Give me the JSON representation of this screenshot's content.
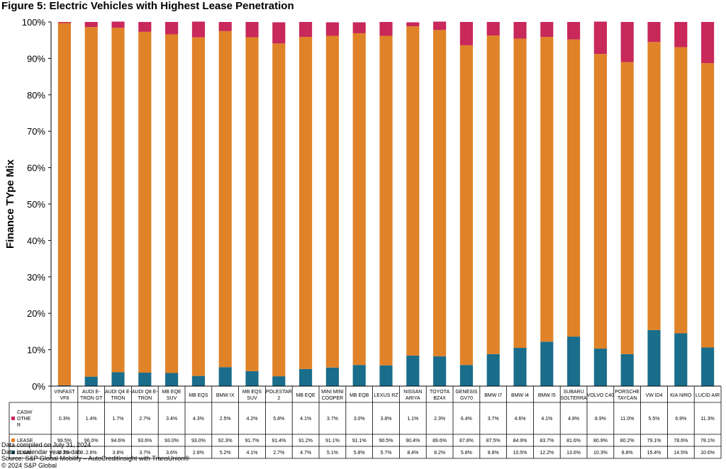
{
  "title": "Figure 5: Electric Vehicles with Highest Lease Penetration",
  "notes": [
    "Data compiled on July 31, 2024",
    "Data is calendar year to-date.",
    "Source: S&P Global Mobility – AutoCreditInsight with TransUnion®",
    "© 2024 S&P Global"
  ],
  "chart_data": {
    "type": "bar",
    "stacked": true,
    "ylabel": "Finance TYpe Mix",
    "ylim": [
      0,
      100
    ],
    "yticks": [
      "0%",
      "10%",
      "20%",
      "30%",
      "40%",
      "50%",
      "60%",
      "70%",
      "80%",
      "90%",
      "100%"
    ],
    "grid": false,
    "legend": "data table below chart",
    "categories": [
      [
        "VINFAST",
        "VF8"
      ],
      [
        "AUDI E-",
        "TRON GT"
      ],
      [
        "AUDI Q4 E-",
        "TRON"
      ],
      [
        "AUDI Q8 E-",
        "TRON"
      ],
      [
        "MB EQE",
        "SUV"
      ],
      [
        "MB EQS"
      ],
      [
        "BMW IX"
      ],
      [
        "MB EQS",
        "SUV"
      ],
      [
        "POLESTAR",
        "2"
      ],
      [
        "MB EQE"
      ],
      [
        "MINI MINI",
        "COOPER"
      ],
      [
        "MB EQB"
      ],
      [
        "LEXUS RZ"
      ],
      [
        "NISSAN",
        "ARIYA"
      ],
      [
        "TOYOTA",
        "BZ4X"
      ],
      [
        "GENESIS",
        "GV70"
      ],
      [
        "BMW I7"
      ],
      [
        "BMW I4"
      ],
      [
        "BMW I5"
      ],
      [
        "SUBARU",
        "SOLTERRA"
      ],
      [
        "VOLVO C40"
      ],
      [
        "PORSCHE",
        "TAYCAN"
      ],
      [
        "VW ID4"
      ],
      [
        "KIA NIRO"
      ],
      [
        "LUCID AIR"
      ]
    ],
    "series": [
      {
        "name": "LOAN",
        "label_lines": [
          "LOAN"
        ],
        "color": "#1a6d8b",
        "values": [
          0.2,
          2.6,
          3.8,
          3.7,
          3.6,
          2.8,
          5.2,
          4.1,
          2.7,
          4.7,
          5.1,
          5.8,
          5.7,
          8.4,
          8.2,
          5.8,
          8.8,
          10.5,
          12.2,
          13.6,
          10.3,
          8.8,
          15.4,
          14.5,
          10.6
        ],
        "labels": [
          "0.2%",
          "2.6%",
          "3.8%",
          "3.7%",
          "3.6%",
          "2.8%",
          "5.2%",
          "4.1%",
          "2.7%",
          "4.7%",
          "5.1%",
          "5.8%",
          "5.7%",
          "8.4%",
          "8.2%",
          "5.8%",
          "8.8%",
          "10.5%",
          "12.2%",
          "13.6%",
          "10.3%",
          "8.8%",
          "15.4%",
          "14.5%",
          "10.6%"
        ]
      },
      {
        "name": "LEASE",
        "label_lines": [
          "LEASE"
        ],
        "color": "#e08228",
        "values": [
          99.5,
          96.0,
          94.6,
          93.6,
          93.0,
          93.0,
          92.3,
          91.7,
          91.4,
          91.2,
          91.1,
          91.1,
          90.5,
          90.4,
          89.6,
          87.8,
          87.5,
          84.9,
          83.7,
          81.6,
          80.9,
          80.2,
          79.1,
          78.6,
          78.1
        ],
        "labels": [
          "99.5%",
          "96.0%",
          "94.6%",
          "93.6%",
          "93.0%",
          "93.0%",
          "92.3%",
          "91.7%",
          "91.4%",
          "91.2%",
          "91.1%",
          "91.1%",
          "90.5%",
          "90.4%",
          "89.6%",
          "87.8%",
          "87.5%",
          "84.9%",
          "83.7%",
          "81.6%",
          "80.9%",
          "80.2%",
          "79.1%",
          "78.6%",
          "78.1%"
        ]
      },
      {
        "name": "CASH/OTHER",
        "label_lines": [
          "CASH/",
          "OTHE",
          "R"
        ],
        "color": "#c8285a",
        "values": [
          0.3,
          1.4,
          1.7,
          2.7,
          3.4,
          4.3,
          2.5,
          4.2,
          5.8,
          4.1,
          3.7,
          3.0,
          3.8,
          1.1,
          2.3,
          6.4,
          3.7,
          4.6,
          4.1,
          4.8,
          8.9,
          11.0,
          5.5,
          6.9,
          11.3
        ],
        "labels": [
          "0.3%",
          "1.4%",
          "1.7%",
          "2.7%",
          "3.4%",
          "4.3%",
          "2.5%",
          "4.2%",
          "5.8%",
          "4.1%",
          "3.7%",
          "3.0%",
          "3.8%",
          "1.1%",
          "2.3%",
          "6.4%",
          "3.7%",
          "4.6%",
          "4.1%",
          "4.8%",
          "8.9%",
          "11.0%",
          "5.5%",
          "6.9%",
          "11.3%"
        ]
      }
    ]
  }
}
